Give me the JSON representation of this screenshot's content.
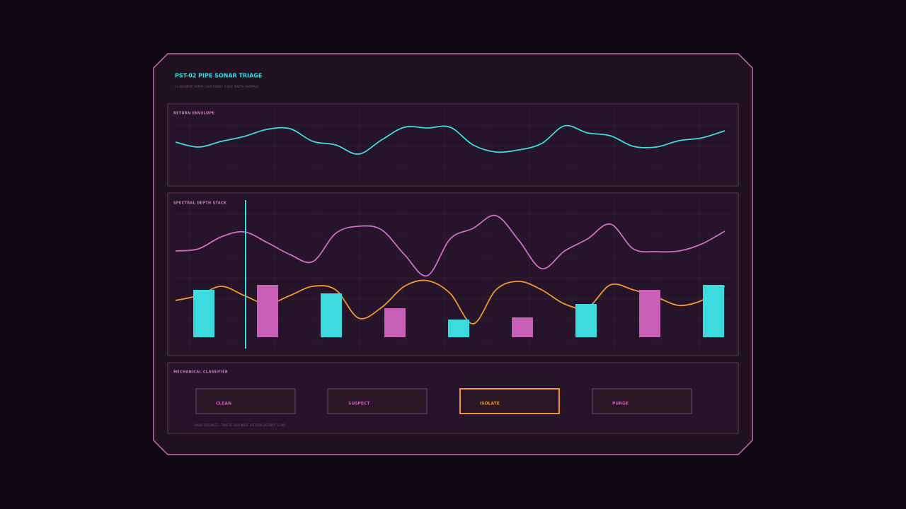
{
  "header": {
    "title": "PST-02  PIPE SONAR TRIAGE",
    "subtitle": "12-SEGMENT ARRAY / HEX CODEC  //  REV: WIDTH ANOMALY"
  },
  "panels": [
    {
      "label": "RETURN ENVELOPE",
      "chart_data": {
        "type": "line",
        "ylim": [
          0,
          60
        ],
        "series": [
          {
            "color": "#3ddbe0",
            "values": [
              24,
              17,
              25,
              32,
              42,
              43,
              25,
              20,
              7,
              27,
              45,
              44,
              45,
              20,
              10,
              13,
              22,
              47,
              37,
              33,
              18,
              17,
              26,
              30,
              40
            ]
          }
        ]
      }
    },
    {
      "label": "SPECTRAL DEPTH STACK",
      "chart_data": {
        "type": "combo",
        "ylim": [
          0,
          200
        ],
        "series": [
          {
            "color": "#d06cc4",
            "values": [
              122,
              125,
              142,
              149,
              134,
              117,
              107,
              147,
              157,
              152,
              117,
              87,
              139,
              154,
              172,
              137,
              97,
              122,
              139,
              160,
              125,
              121,
              122,
              132,
              150
            ]
          },
          {
            "color": "#f0962e",
            "values": [
              52,
              59,
              72,
              59,
              47,
              59,
              72,
              67,
              27,
              42,
              72,
              80,
              62,
              19,
              67,
              79,
              67,
              47,
              42,
              74,
              67,
              57,
              45,
              52,
              72
            ]
          }
        ],
        "bars": {
          "colors": [
            "#3ddbe0",
            "#c860b8"
          ],
          "values": [
            67,
            74,
            62,
            41,
            25,
            28,
            47,
            67,
            74
          ]
        }
      }
    },
    {
      "label": "MECHANICAL CLASSIFIER",
      "buttons": [
        "CLEAN",
        "SUSPECT",
        "ISOLATE",
        "PURGE"
      ],
      "footer": "HASH 0X5L4Q31 · TRAFFIC 34.4 MB/S · RETURN LATENCY 12 MS"
    }
  ]
}
